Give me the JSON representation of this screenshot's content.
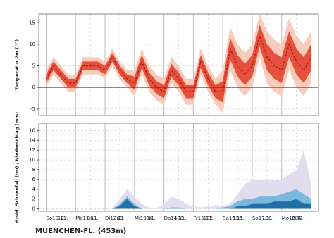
{
  "chart_data": [
    {
      "type": "band-line",
      "y_label": "Temperatur 2m (°C)",
      "x": [
        0,
        6,
        12,
        18,
        24,
        30,
        36,
        42,
        48,
        54,
        60,
        66,
        72,
        78,
        84,
        90,
        96,
        102,
        108,
        114,
        120,
        126,
        132,
        138,
        144,
        150,
        156,
        162,
        168,
        174,
        180,
        186,
        192,
        198,
        204,
        210,
        216
      ],
      "xlim": [
        -6,
        222
      ],
      "ylim": [
        -6.5,
        17
      ],
      "yticks": [
        -5,
        0,
        5,
        10,
        15
      ],
      "zero_line_color": "#3333cc",
      "bands": [
        {
          "color": "#f8cbbb",
          "low": [
            0,
            3,
            1,
            -1,
            -1,
            3,
            3,
            3,
            2,
            5,
            2,
            0,
            -2,
            3,
            -1,
            -3,
            -4,
            1,
            -1,
            -4,
            -4,
            3,
            -1,
            -4,
            -6,
            4,
            0,
            -2,
            0,
            7,
            1,
            -1,
            -2,
            4,
            0,
            -2,
            1
          ],
          "high": [
            4,
            7,
            5,
            3,
            3,
            7,
            7,
            7,
            6,
            9,
            6,
            4,
            4,
            9,
            5,
            3,
            2,
            7,
            5,
            2,
            2,
            9,
            5,
            2,
            4,
            14,
            10,
            8,
            10,
            17,
            13,
            11,
            10,
            16,
            12,
            10,
            13
          ]
        },
        {
          "color": "#e4513c",
          "low": [
            1,
            4,
            2,
            0,
            0,
            4,
            4,
            4,
            3,
            6,
            3,
            1,
            -0.5,
            4.5,
            0.5,
            -1.5,
            -2.5,
            2.5,
            0.5,
            -2.5,
            -2.5,
            4.5,
            0.5,
            -2.5,
            -3.5,
            6.5,
            2.5,
            0.5,
            2.5,
            9.5,
            4,
            2,
            1,
            7,
            3,
            1,
            4
          ],
          "high": [
            3,
            6,
            4,
            2,
            2,
            6,
            6,
            6,
            5,
            8,
            5,
            3,
            2.5,
            7.5,
            3.5,
            1.5,
            0.5,
            5.5,
            3.5,
            0.5,
            0.5,
            7.5,
            3.5,
            0.5,
            1.5,
            11.5,
            7.5,
            5.5,
            7.5,
            14.5,
            10,
            8,
            7,
            13,
            9,
            7,
            10
          ]
        }
      ],
      "series": [
        {
          "color": "#c0141a",
          "values": [
            2,
            5,
            3,
            1,
            1,
            5,
            5,
            5,
            4,
            7,
            4,
            2,
            1,
            6,
            2,
            0,
            -1,
            4,
            2,
            -1,
            -1,
            6,
            2,
            -1,
            -1,
            9,
            5,
            3,
            5,
            12,
            7,
            5,
            4,
            10,
            6,
            4,
            7
          ]
        }
      ]
    },
    {
      "type": "area",
      "y_label": "6-std. Schneefall (cm) / Niederschlag (mm)",
      "x": [
        0,
        6,
        12,
        18,
        24,
        30,
        36,
        42,
        48,
        54,
        60,
        66,
        72,
        78,
        84,
        90,
        96,
        102,
        108,
        114,
        120,
        126,
        132,
        138,
        144,
        150,
        156,
        162,
        168,
        174,
        180,
        186,
        192,
        198,
        204,
        210,
        216
      ],
      "xlim": [
        -6,
        222
      ],
      "ylim": [
        -0.5,
        17.5
      ],
      "yticks": [
        0,
        2,
        4,
        6,
        8,
        10,
        12,
        14,
        16
      ],
      "xticks": [
        {
          "value": 0,
          "label": "So10.11."
        },
        12,
        {
          "value": 24,
          "label": "Mo11.11."
        },
        36,
        {
          "value": 48,
          "label": "Di12.11."
        },
        60,
        {
          "value": 72,
          "label": "Mi13.11."
        },
        84,
        {
          "value": 96,
          "label": "Do14.11."
        },
        108,
        {
          "value": 120,
          "label": "Fr15.11."
        },
        132,
        {
          "value": 144,
          "label": "Sa16.11."
        },
        156,
        {
          "value": 168,
          "label": "So17.11."
        },
        180,
        {
          "value": 192,
          "label": "Mo18.11."
        },
        204
      ],
      "series": [
        {
          "color": "#e2ddee",
          "values": [
            0,
            0,
            0,
            0,
            0,
            0,
            0,
            0,
            0,
            0,
            2,
            4,
            2.5,
            1,
            0.2,
            0.2,
            1,
            2.5,
            2,
            1,
            0.5,
            0.3,
            0.5,
            0.8,
            0.5,
            1,
            3,
            5,
            6,
            6,
            6,
            6,
            6,
            7,
            8,
            12,
            5
          ]
        },
        {
          "color": "#7ab8de",
          "values": [
            0,
            0,
            0,
            0,
            0,
            0,
            0,
            0,
            0,
            0,
            1,
            2.5,
            1,
            0,
            0,
            0,
            0,
            0.3,
            0.3,
            0,
            0,
            0,
            0,
            0,
            0.3,
            0.5,
            1.5,
            2,
            2,
            2.5,
            2.5,
            2.5,
            3,
            3.5,
            4,
            3,
            2
          ]
        },
        {
          "color": "#1f6fa8",
          "values": [
            0,
            0,
            0,
            0,
            0,
            0,
            0,
            0,
            0,
            0,
            0.5,
            2,
            0.5,
            0,
            0,
            0,
            0,
            0,
            0,
            0,
            0,
            0,
            0,
            0,
            0,
            0,
            0.5,
            0.5,
            1,
            1,
            1,
            1.5,
            1.5,
            1.5,
            2,
            1,
            1
          ]
        }
      ]
    }
  ],
  "footer": "MUENCHEN-FL. (453m)"
}
